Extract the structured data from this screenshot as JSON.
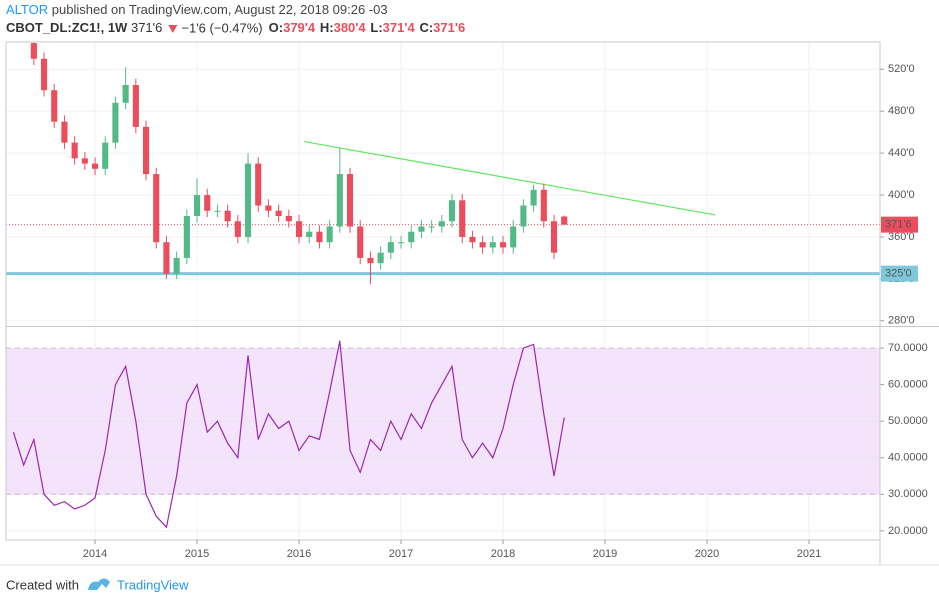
{
  "header": {
    "author": "ALTOR",
    "published": "published on TradingView.com, August 22, 2018 09:26 -03",
    "symbol": "CBOT_DL:ZC1!, 1W",
    "price": "371'6",
    "change": "−1'6 (−0.47%)",
    "ohlc": [
      {
        "label": "O:",
        "value": "379'4"
      },
      {
        "label": "H:",
        "value": "380'4"
      },
      {
        "label": "L:",
        "value": "371'4"
      },
      {
        "label": "C:",
        "value": "371'6"
      }
    ]
  },
  "footer": {
    "text": "Created with",
    "brand": "TradingView"
  },
  "chart_data": [
    {
      "type": "candlestick",
      "up_color": "#53b987",
      "down_color": "#eb4d5c",
      "x": [
        2013.4,
        2013.5,
        2013.6,
        2013.7,
        2013.8,
        2013.9,
        2014.0,
        2014.1,
        2014.2,
        2014.3,
        2014.4,
        2014.5,
        2014.6,
        2014.7,
        2014.8,
        2014.9,
        2015.0,
        2015.1,
        2015.2,
        2015.3,
        2015.4,
        2015.5,
        2015.6,
        2015.7,
        2015.8,
        2015.9,
        2016.0,
        2016.1,
        2016.2,
        2016.3,
        2016.4,
        2016.5,
        2016.6,
        2016.7,
        2016.8,
        2016.9,
        2017.0,
        2017.1,
        2017.2,
        2017.3,
        2017.4,
        2017.5,
        2017.6,
        2017.7,
        2017.8,
        2017.9,
        2018.0,
        2018.1,
        2018.2,
        2018.3,
        2018.4,
        2018.5,
        2018.6
      ],
      "open": [
        545,
        530,
        500,
        470,
        450,
        435,
        430,
        425,
        450,
        488,
        505,
        465,
        420,
        355,
        325,
        340,
        380,
        400,
        385,
        385,
        375,
        360,
        430,
        390,
        385,
        380,
        375,
        360,
        365,
        355,
        370,
        420,
        370,
        340,
        335,
        345,
        355,
        355,
        365,
        370,
        370,
        375,
        395,
        360,
        355,
        350,
        355,
        350,
        370,
        390,
        405,
        375,
        379.5
      ],
      "high": [
        548,
        536,
        506,
        476,
        456,
        441,
        436,
        456,
        494,
        522,
        511,
        471,
        426,
        361,
        346,
        386,
        416,
        406,
        391,
        391,
        381,
        440,
        436,
        396,
        391,
        386,
        381,
        371,
        371,
        376,
        445,
        426,
        376,
        346,
        351,
        361,
        361,
        371,
        376,
        376,
        381,
        401,
        401,
        366,
        361,
        361,
        361,
        376,
        396,
        410,
        411,
        381,
        380.5
      ],
      "low": [
        524,
        494,
        464,
        444,
        429,
        424,
        419,
        419,
        444,
        482,
        459,
        414,
        349,
        320,
        320,
        334,
        374,
        379,
        379,
        369,
        354,
        354,
        384,
        379,
        374,
        369,
        354,
        354,
        349,
        349,
        364,
        364,
        334,
        315,
        329,
        339,
        349,
        349,
        359,
        364,
        364,
        369,
        354,
        349,
        344,
        344,
        344,
        344,
        364,
        384,
        369,
        339,
        371.5
      ],
      "close": [
        530,
        500,
        470,
        450,
        435,
        430,
        425,
        450,
        488,
        505,
        465,
        420,
        355,
        325,
        340,
        380,
        400,
        385,
        385,
        375,
        360,
        430,
        390,
        385,
        380,
        375,
        360,
        365,
        355,
        370,
        420,
        370,
        340,
        335,
        345,
        355,
        355,
        365,
        370,
        370,
        375,
        395,
        360,
        355,
        350,
        355,
        350,
        370,
        390,
        405,
        375,
        345,
        371.75
      ],
      "xlim": [
        2013.127,
        2021.696
      ],
      "ylim": [
        276,
        546
      ],
      "yticks": [
        {
          "value": 280,
          "label": "280'0"
        },
        {
          "value": 320,
          "label": "320'0"
        },
        {
          "value": 360,
          "label": "360'0"
        },
        {
          "value": 400,
          "label": "400'0"
        },
        {
          "value": 440,
          "label": "440'0"
        },
        {
          "value": 480,
          "label": "480'0"
        },
        {
          "value": 520,
          "label": "520'0"
        }
      ],
      "grid": true,
      "support": {
        "value": 325,
        "label": "325'0",
        "color": "#7ec8dc"
      },
      "last_price": {
        "value": 371.75,
        "label": "371'6",
        "color": "#eb4d5c"
      },
      "trendline": {
        "x": [
          2016.05,
          2020.08
        ],
        "y": [
          451,
          381
        ],
        "color": "#5ee85e"
      }
    },
    {
      "type": "line",
      "color": "#9c27b0",
      "x": [
        2013.2,
        2013.3,
        2013.4,
        2013.5,
        2013.6,
        2013.7,
        2013.8,
        2013.9,
        2014.0,
        2014.1,
        2014.2,
        2014.3,
        2014.4,
        2014.5,
        2014.6,
        2014.7,
        2014.8,
        2014.9,
        2015.0,
        2015.1,
        2015.2,
        2015.3,
        2015.4,
        2015.5,
        2015.6,
        2015.7,
        2015.8,
        2015.9,
        2016.0,
        2016.1,
        2016.2,
        2016.3,
        2016.4,
        2016.5,
        2016.6,
        2016.7,
        2016.8,
        2016.9,
        2017.0,
        2017.1,
        2017.2,
        2017.3,
        2017.4,
        2017.5,
        2017.6,
        2017.7,
        2017.8,
        2017.9,
        2018.0,
        2018.1,
        2018.2,
        2018.3,
        2018.4,
        2018.5,
        2018.6
      ],
      "values": [
        47,
        38,
        45,
        30,
        27,
        28,
        26,
        27,
        29,
        42,
        60,
        65,
        50,
        30,
        24,
        21,
        35,
        55,
        60,
        47,
        50,
        44,
        40,
        68,
        45,
        52,
        48,
        50,
        42,
        46,
        45,
        58,
        72,
        42,
        36,
        45,
        42,
        50,
        45,
        52,
        48,
        55,
        60,
        65,
        45,
        40,
        44,
        40,
        48,
        60,
        70,
        71,
        52,
        35,
        51
      ],
      "xlim": [
        2013.127,
        2021.696
      ],
      "ylim": [
        17.5,
        75.5
      ],
      "xticks": [
        2014,
        2015,
        2016,
        2017,
        2018,
        2019,
        2020,
        2021
      ],
      "yticks": [
        {
          "value": 20,
          "label": "20.0000"
        },
        {
          "value": 30,
          "label": "30.0000"
        },
        {
          "value": 40,
          "label": "40.0000"
        },
        {
          "value": 50,
          "label": "50.0000"
        },
        {
          "value": 60,
          "label": "60.0000"
        },
        {
          "value": 70,
          "label": "70.0000"
        }
      ],
      "band": [
        30,
        70
      ],
      "band_color": "#f3e3fb",
      "grid": true
    }
  ]
}
